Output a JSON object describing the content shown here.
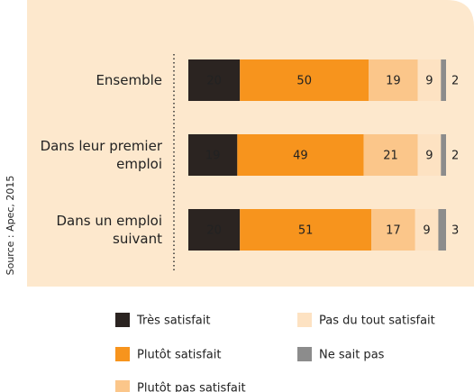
{
  "chart_data": {
    "type": "stacked-barh",
    "source": "Source : Apec, 2015",
    "categories": [
      "Ensemble",
      "Dans leur premier emploi",
      "Dans un emploi suivant"
    ],
    "series": [
      {
        "name": "Très satisfait",
        "color": "#2b2421",
        "values": [
          20,
          19,
          20
        ]
      },
      {
        "name": "Plutôt satisfait",
        "color": "#f7941d",
        "values": [
          50,
          49,
          51
        ]
      },
      {
        "name": "Plutôt pas satisfait",
        "color": "#fbc68a",
        "values": [
          19,
          21,
          17
        ]
      },
      {
        "name": "Pas du tout satisfait",
        "color": "#fde2c2",
        "values": [
          9,
          9,
          9
        ]
      },
      {
        "name": "Ne sait pas",
        "color": "#8c8c8c",
        "values": [
          2,
          2,
          3
        ]
      }
    ],
    "xlim": [
      0,
      100
    ]
  }
}
